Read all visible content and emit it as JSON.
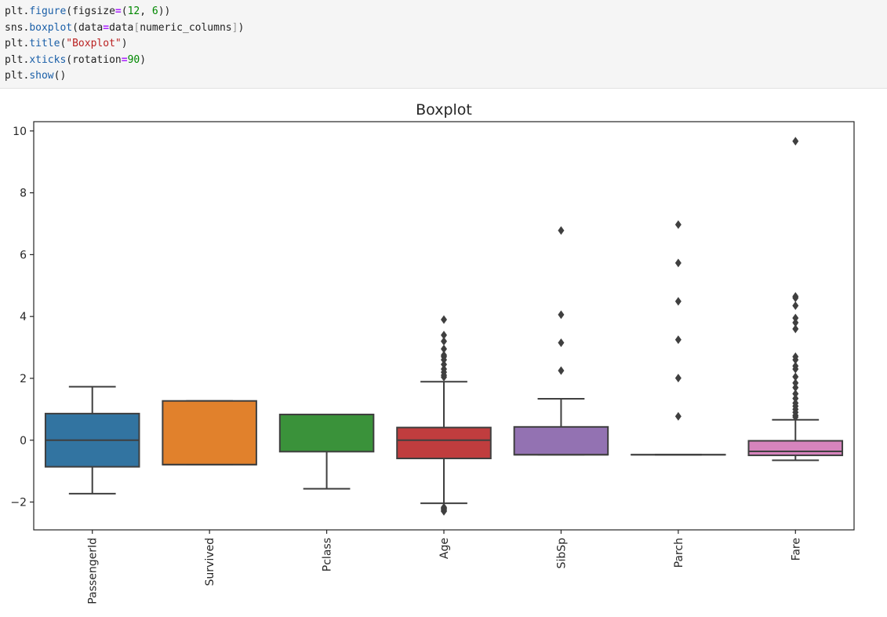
{
  "code_cell": {
    "lines": [
      [
        {
          "t": "plt",
          "c": "var"
        },
        {
          "t": ".",
          "c": "punct"
        },
        {
          "t": "figure",
          "c": "fn"
        },
        {
          "t": "(",
          "c": "punct"
        },
        {
          "t": "figsize",
          "c": "var"
        },
        {
          "t": "=",
          "c": "op"
        },
        {
          "t": "(",
          "c": "punct"
        },
        {
          "t": "12",
          "c": "num"
        },
        {
          "t": ", ",
          "c": "punct"
        },
        {
          "t": "6",
          "c": "num"
        },
        {
          "t": "))",
          "c": "punct"
        }
      ],
      [
        {
          "t": "sns",
          "c": "var"
        },
        {
          "t": ".",
          "c": "punct"
        },
        {
          "t": "boxplot",
          "c": "fn"
        },
        {
          "t": "(",
          "c": "punct"
        },
        {
          "t": "data",
          "c": "var"
        },
        {
          "t": "=",
          "c": "op"
        },
        {
          "t": "data",
          "c": "var"
        },
        {
          "t": "[",
          "c": "brk"
        },
        {
          "t": "numeric_columns",
          "c": "var"
        },
        {
          "t": "]",
          "c": "brk"
        },
        {
          "t": ")",
          "c": "punct"
        }
      ],
      [
        {
          "t": "plt",
          "c": "var"
        },
        {
          "t": ".",
          "c": "punct"
        },
        {
          "t": "title",
          "c": "fn"
        },
        {
          "t": "(",
          "c": "punct"
        },
        {
          "t": "\"Boxplot\"",
          "c": "str"
        },
        {
          "t": ")",
          "c": "punct"
        }
      ],
      [
        {
          "t": "plt",
          "c": "var"
        },
        {
          "t": ".",
          "c": "punct"
        },
        {
          "t": "xticks",
          "c": "fn"
        },
        {
          "t": "(",
          "c": "punct"
        },
        {
          "t": "rotation",
          "c": "var"
        },
        {
          "t": "=",
          "c": "op"
        },
        {
          "t": "90",
          "c": "num"
        },
        {
          "t": ")",
          "c": "punct"
        }
      ],
      [
        {
          "t": "plt",
          "c": "var"
        },
        {
          "t": ".",
          "c": "punct"
        },
        {
          "t": "show",
          "c": "fn"
        },
        {
          "t": "()",
          "c": "punct"
        }
      ]
    ]
  },
  "chart_data": {
    "type": "box",
    "title": "Boxplot",
    "xlabel": "",
    "ylabel": "",
    "ylim": [
      -2.9,
      10.3
    ],
    "yticks": [
      -2,
      0,
      2,
      4,
      6,
      8,
      10
    ],
    "ytick_labels": [
      "−2",
      "0",
      "2",
      "4",
      "6",
      "8",
      "10"
    ],
    "categories": [
      "PassengerId",
      "Survived",
      "Pclass",
      "Age",
      "SibSp",
      "Parch",
      "Fare"
    ],
    "xtick_rotation": 90,
    "grid": false,
    "legend": "none",
    "series": [
      {
        "color": "#3274a1",
        "whislo": -1.73,
        "q1": -0.86,
        "med": 0.0,
        "q3": 0.86,
        "whishi": 1.73,
        "fliers": []
      },
      {
        "color": "#e1812c",
        "whislo": -0.79,
        "q1": -0.79,
        "med": -0.79,
        "q3": 1.27,
        "whishi": 1.27,
        "fliers": []
      },
      {
        "color": "#3a923a",
        "whislo": -1.57,
        "q1": -0.37,
        "med": 0.83,
        "q3": 0.83,
        "whishi": 0.83,
        "fliers": []
      },
      {
        "color": "#c03d3e",
        "whislo": -2.04,
        "q1": -0.59,
        "med": 0.0,
        "q3": 0.41,
        "whishi": 1.89,
        "fliers": [
          -2.3,
          -2.27,
          -2.23,
          -2.2,
          -2.17,
          2.04,
          2.1,
          2.2,
          2.3,
          2.45,
          2.6,
          2.7,
          2.75,
          2.95,
          3.2,
          3.4,
          3.9
        ]
      },
      {
        "color": "#9372b2",
        "whislo": -0.47,
        "q1": -0.47,
        "med": -0.47,
        "q3": 0.43,
        "whishi": 1.34,
        "fliers": [
          2.25,
          3.15,
          4.06,
          6.78
        ]
      },
      {
        "color": "#845b53",
        "whislo": -0.47,
        "q1": -0.47,
        "med": -0.47,
        "q3": -0.47,
        "whishi": -0.47,
        "fliers": [
          0.77,
          2.01,
          3.25,
          4.49,
          5.73,
          6.97
        ]
      },
      {
        "color": "#d684bd",
        "whislo": -0.65,
        "q1": -0.49,
        "med": -0.36,
        "q3": -0.02,
        "whishi": 0.66,
        "fliers": [
          0.75,
          0.8,
          0.9,
          1.0,
          1.1,
          1.2,
          1.35,
          1.5,
          1.7,
          1.85,
          2.05,
          2.3,
          2.4,
          2.6,
          2.7,
          3.6,
          3.8,
          3.95,
          4.35,
          4.6,
          4.65,
          9.67
        ]
      }
    ]
  }
}
